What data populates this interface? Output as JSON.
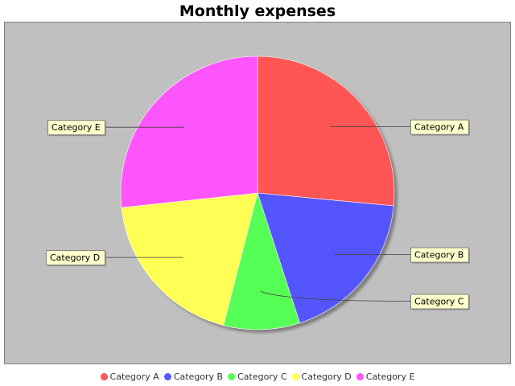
{
  "chart_data": {
    "type": "pie",
    "title": "Monthly expenses",
    "categories": [
      "Category A",
      "Category B",
      "Category C",
      "Category D",
      "Category E"
    ],
    "values": [
      26.5,
      18.5,
      9.0,
      19.3,
      26.7
    ],
    "colors": [
      "#ff5555",
      "#5555ff",
      "#55ff55",
      "#ffff55",
      "#ff55ff"
    ],
    "plot_background": "#c0c0c0",
    "label_background": "#ffffcc",
    "legend_position": "bottom"
  }
}
